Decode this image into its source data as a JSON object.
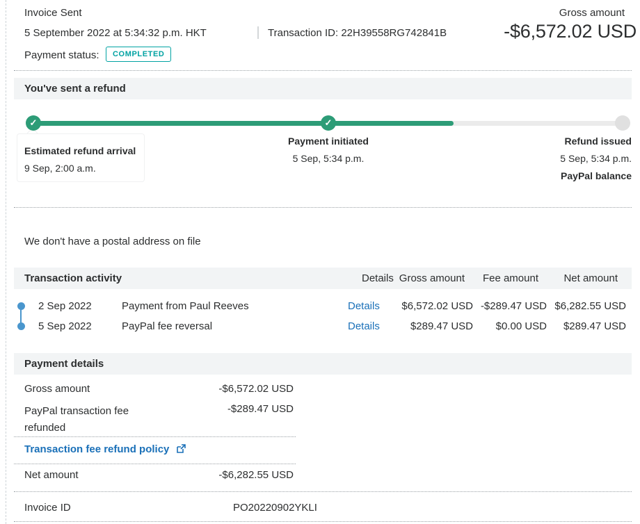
{
  "header": {
    "title": "Invoice Sent",
    "datetime": "5 September 2022 at 5:34:32 p.m. HKT",
    "transaction_id_label": "Transaction ID:",
    "transaction_id": "22H39558RG742841B",
    "payment_status_label": "Payment status:",
    "payment_status": "COMPLETED",
    "gross_amount_label": "Gross amount",
    "gross_amount": "-$6,572.02 USD"
  },
  "refund_tracker": {
    "title": "You've sent a refund",
    "progress_percent": 66.5,
    "steps": [
      {
        "label": "Estimated refund arrival",
        "date": "9 Sep, 2:00 a.m.",
        "state": "complete"
      },
      {
        "label": "Payment initiated",
        "date": "5 Sep, 5:34 p.m.",
        "state": "complete"
      },
      {
        "label": "Refund issued",
        "date": "5 Sep, 5:34 p.m.",
        "sublabel": "PayPal balance",
        "state": "pending"
      }
    ]
  },
  "notice": "We don't have a postal address on file",
  "activity": {
    "title": "Transaction activity",
    "columns": [
      "Details",
      "Gross amount",
      "Fee amount",
      "Net amount"
    ],
    "rows": [
      {
        "date": "2 Sep 2022",
        "description": "Payment from Paul Reeves",
        "details_label": "Details",
        "gross": "$6,572.02 USD",
        "fee": "-$289.47 USD",
        "net": "$6,282.55 USD"
      },
      {
        "date": "5 Sep 2022",
        "description": "PayPal fee reversal",
        "details_label": "Details",
        "gross": "$289.47 USD",
        "fee": "$0.00 USD",
        "net": "$289.47 USD"
      }
    ]
  },
  "payment_details": {
    "title": "Payment details",
    "rows": [
      {
        "label": "Gross amount",
        "value": "-$6,572.02 USD"
      },
      {
        "label": "PayPal transaction fee refunded",
        "value": "-$289.47 USD"
      }
    ],
    "policy_link": "Transaction fee refund policy",
    "net": {
      "label": "Net amount",
      "value": "-$6,282.55 USD"
    },
    "invoice": {
      "label": "Invoice ID",
      "value": "PO20220902YKLI"
    }
  },
  "icons": {
    "check": "✓"
  },
  "colors": {
    "text": "#2c2e2f",
    "accent_green": "#2d9c77",
    "badge_teal": "#00a2a2",
    "link_blue": "#1a70b8",
    "dot_blue": "#4a96cd",
    "section_bar_bg": "#f2f4f5",
    "track_gray": "#ebebeb",
    "pending_node": "#e0e0e0"
  }
}
